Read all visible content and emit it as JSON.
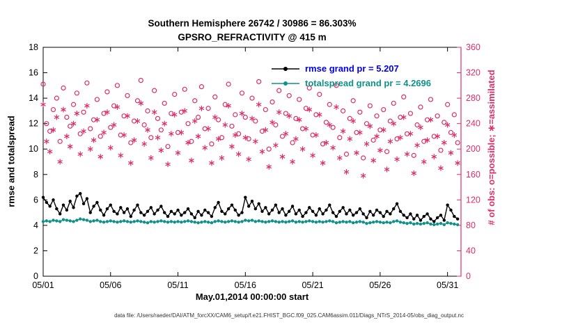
{
  "title": {
    "line1": "Southern Hemisphere 26742 / 30986 = 86.303%",
    "line2": "GPSRO_REFRACTIVITY @ 415 m"
  },
  "axes": {
    "left_label": "rmse and totalspread",
    "right_label": "# of obs: o=possible; ∗=assimilated",
    "x_label": "May.01,2014 00:00:00 start"
  },
  "legend": [
    {
      "label": "rmse grand pr = 5.207",
      "text_color": "#0000ee",
      "line_color": "#000000"
    },
    {
      "label": "totalspread grand pr = 4.2696",
      "text_color": "#0e9189",
      "line_color": "#0e9189"
    }
  ],
  "footer": "data file: /Users/raeder/DAI/ATM_forcXX/CAM6_setup/f.e21.FHIST_BGC.f09_025.CAM6assim.011/Diags_NTrS_2014-05/obs_diag_output.nc",
  "colors": {
    "obs_pink": "#df2c6a",
    "rmse_black": "#000000",
    "spread_teal": "#0e9189",
    "axis_black": "#000000"
  },
  "chart_data": {
    "type": "line+scatter",
    "title": "Southern Hemisphere 26742 / 30986 = 86.303% | GPSRO_REFRACTIVITY @ 415 m",
    "xlabel": "May.01,2014 00:00:00 start",
    "grid": false,
    "legend_position": "top-center-inside",
    "x": {
      "start_day": 1,
      "step_days": 0.25,
      "count": 124,
      "axis_min": 1,
      "axis_max": 32,
      "tick_days": [
        1,
        6,
        11,
        16,
        21,
        26,
        31
      ],
      "tick_labels": [
        "05/01",
        "05/06",
        "05/11",
        "05/16",
        "05/21",
        "05/26",
        "05/31"
      ]
    },
    "y_left": {
      "label": "rmse and totalspread",
      "min": 0,
      "max": 18,
      "tick_labels": [
        "0",
        "2",
        "4",
        "6",
        "8",
        "10",
        "12",
        "14",
        "16",
        "18"
      ]
    },
    "y_right": {
      "label": "# of obs: o=possible; ∗=assimilated",
      "min": 0,
      "max": 360,
      "tick_labels": [
        "0",
        "40",
        "80",
        "120",
        "160",
        "200",
        "240",
        "280",
        "320",
        "360"
      ]
    },
    "series": [
      {
        "name": "possible_obs",
        "axis": "right",
        "plot": "scatter",
        "marker": "open-circle",
        "color": "#df2c6a",
        "values": [
          302,
          240,
          228,
          262,
          280,
          212,
          296,
          250,
          236,
          270,
          288,
          224,
          258,
          304,
          232,
          246,
          278,
          220,
          256,
          290,
          234,
          268,
          300,
          222,
          252,
          284,
          210,
          244,
          276,
          308,
          238,
          260,
          218,
          292,
          248,
          230,
          272,
          204,
          256,
          286,
          226,
          258,
          294,
          240,
          212,
          276,
          250,
          298,
          232,
          264,
          208,
          282,
          246,
          218,
          270,
          302,
          236,
          254,
          224,
          288,
          250,
          216,
          280,
          244,
          306,
          228,
          262,
          200,
          274,
          238,
          292,
          220,
          256,
          284,
          210,
          248,
          278,
          232,
          264,
          296,
          222,
          254,
          286,
          208,
          242,
          270,
          234,
          300,
          218,
          260,
          192,
          248,
          276,
          226,
          258,
          186,
          240,
          268,
          214,
          252,
          230,
          262,
          196,
          244,
          272,
          216,
          250,
          282,
          224,
          256,
          190,
          238,
          266,
          212,
          246,
          278,
          220,
          252,
          198,
          242,
          270,
          226,
          254,
          210
        ]
      },
      {
        "name": "assimilated_obs",
        "axis": "right",
        "plot": "scatter",
        "marker": "asterisk",
        "color": "#df2c6a",
        "values": [
          270,
          212,
          196,
          230,
          250,
          180,
          262,
          220,
          204,
          240,
          256,
          192,
          228,
          268,
          200,
          214,
          246,
          188,
          226,
          258,
          202,
          238,
          266,
          190,
          222,
          252,
          178,
          214,
          244,
          272,
          208,
          230,
          186,
          258,
          218,
          198,
          240,
          176,
          224,
          254,
          194,
          226,
          260,
          210,
          182,
          244,
          220,
          264,
          202,
          232,
          178,
          250,
          216,
          186,
          238,
          268,
          204,
          222,
          192,
          256,
          218,
          184,
          248,
          212,
          270,
          196,
          230,
          172,
          242,
          206,
          258,
          188,
          224,
          252,
          180,
          216,
          246,
          200,
          232,
          262,
          190,
          222,
          254,
          178,
          210,
          238,
          202,
          266,
          186,
          228,
          164,
          216,
          244,
          194,
          226,
          158,
          208,
          236,
          182,
          220,
          198,
          230,
          168,
          212,
          240,
          184,
          218,
          250,
          192,
          224,
          162,
          206,
          234,
          180,
          214,
          246,
          188,
          220,
          170,
          210,
          238,
          194,
          222,
          178
        ]
      },
      {
        "name": "totalspread",
        "axis": "left",
        "plot": "line",
        "marker": "filled-circle",
        "color": "#0e9189",
        "grand_value": 4.2696,
        "values": [
          4.3,
          4.35,
          4.3,
          4.4,
          4.35,
          4.3,
          4.45,
          4.4,
          4.35,
          4.3,
          4.4,
          4.5,
          4.45,
          4.4,
          4.3,
          4.35,
          4.4,
          4.3,
          4.25,
          4.3,
          4.35,
          4.3,
          4.25,
          4.3,
          4.35,
          4.3,
          4.25,
          4.3,
          4.35,
          4.3,
          4.25,
          4.2,
          4.3,
          4.25,
          4.3,
          4.35,
          4.3,
          4.25,
          4.3,
          4.25,
          4.3,
          4.25,
          4.3,
          4.35,
          4.3,
          4.25,
          4.2,
          4.25,
          4.3,
          4.25,
          4.2,
          4.3,
          4.35,
          4.3,
          4.25,
          4.3,
          4.35,
          4.3,
          4.25,
          4.3,
          4.4,
          4.35,
          4.4,
          4.3,
          4.35,
          4.3,
          4.25,
          4.3,
          4.35,
          4.3,
          4.25,
          4.3,
          4.25,
          4.3,
          4.35,
          4.25,
          4.3,
          4.25,
          4.3,
          4.35,
          4.3,
          4.25,
          4.3,
          4.25,
          4.3,
          4.35,
          4.3,
          4.2,
          4.25,
          4.3,
          4.25,
          4.3,
          4.2,
          4.25,
          4.3,
          4.25,
          4.15,
          4.2,
          4.25,
          4.3,
          4.25,
          4.2,
          4.25,
          4.2,
          4.3,
          4.35,
          4.25,
          4.2,
          4.15,
          4.2,
          4.1,
          4.15,
          4.1,
          4.15,
          4.2,
          4.1,
          4.05,
          4.1,
          4.15,
          4.05,
          4.2,
          4.15,
          4.1,
          4.05
        ]
      },
      {
        "name": "rmse",
        "axis": "left",
        "plot": "line",
        "marker": "filled-circle",
        "color": "#000000",
        "grand_value": 5.207,
        "values": [
          6.2,
          5.8,
          5.5,
          6.0,
          5.3,
          4.9,
          5.6,
          5.2,
          5.9,
          5.4,
          6.3,
          6.5,
          5.7,
          6.1,
          5.0,
          5.5,
          5.8,
          5.2,
          4.8,
          5.3,
          5.6,
          5.1,
          4.9,
          5.4,
          5.0,
          5.3,
          4.7,
          5.2,
          5.6,
          5.0,
          4.8,
          5.1,
          5.4,
          4.9,
          5.2,
          5.5,
          5.0,
          4.7,
          5.1,
          4.9,
          5.2,
          4.8,
          5.0,
          5.3,
          4.9,
          4.6,
          5.1,
          4.8,
          5.2,
          5.0,
          4.7,
          5.4,
          5.8,
          5.1,
          4.9,
          5.3,
          5.6,
          5.2,
          4.8,
          5.0,
          6.2,
          5.5,
          5.9,
          5.3,
          5.7,
          5.1,
          5.4,
          4.9,
          5.2,
          5.6,
          5.0,
          5.3,
          4.8,
          5.1,
          5.5,
          4.9,
          5.2,
          4.7,
          5.0,
          5.4,
          5.1,
          4.8,
          5.3,
          4.9,
          5.2,
          5.6,
          5.0,
          4.7,
          5.1,
          5.4,
          4.9,
          5.2,
          4.8,
          5.0,
          5.3,
          4.9,
          4.6,
          5.1,
          4.8,
          5.2,
          5.0,
          4.7,
          5.1,
          4.9,
          5.3,
          5.7,
          5.1,
          4.8,
          4.6,
          4.9,
          4.5,
          4.8,
          4.4,
          4.7,
          4.9,
          4.5,
          4.3,
          4.6,
          4.8,
          4.4,
          5.6,
          5.2,
          4.7,
          4.5
        ]
      }
    ]
  }
}
